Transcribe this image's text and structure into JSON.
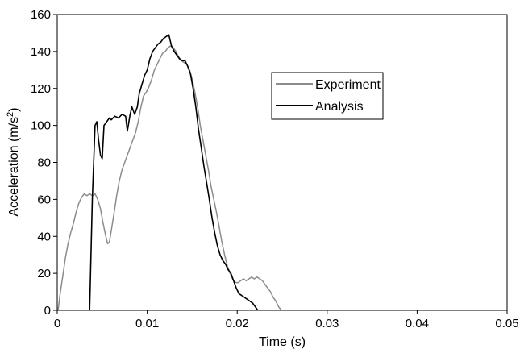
{
  "chart_data": {
    "type": "line",
    "title": "",
    "xlabel": "Time (s)",
    "ylabel_main": "Acceleration (m/s",
    "ylabel_sup": "2",
    "ylabel_close": ")",
    "xlim": [
      0,
      0.05
    ],
    "ylim": [
      0,
      160
    ],
    "xticks": [
      "0",
      "0.01",
      "0.02",
      "0.03",
      "0.04",
      "0.05"
    ],
    "yticks": [
      "0",
      "20",
      "40",
      "60",
      "80",
      "100",
      "120",
      "140",
      "160"
    ],
    "grid": false,
    "legend_position": "upper-center-right",
    "series": [
      {
        "name": "Experiment",
        "color": "#8c8c8c",
        "points": [
          [
            0.0001,
            0
          ],
          [
            0.0003,
            8
          ],
          [
            0.0006,
            18
          ],
          [
            0.0009,
            28
          ],
          [
            0.0012,
            36
          ],
          [
            0.0015,
            42
          ],
          [
            0.0018,
            47
          ],
          [
            0.0021,
            53
          ],
          [
            0.0024,
            58
          ],
          [
            0.0027,
            61
          ],
          [
            0.003,
            63
          ],
          [
            0.0033,
            62
          ],
          [
            0.0036,
            63
          ],
          [
            0.0039,
            62
          ],
          [
            0.0042,
            63
          ],
          [
            0.0045,
            60
          ],
          [
            0.0048,
            55
          ],
          [
            0.0051,
            47
          ],
          [
            0.0054,
            40
          ],
          [
            0.0056,
            36
          ],
          [
            0.0058,
            37
          ],
          [
            0.006,
            43
          ],
          [
            0.0063,
            52
          ],
          [
            0.0066,
            62
          ],
          [
            0.0069,
            70
          ],
          [
            0.0072,
            76
          ],
          [
            0.0075,
            80
          ],
          [
            0.0078,
            84
          ],
          [
            0.0081,
            88
          ],
          [
            0.0084,
            92
          ],
          [
            0.0087,
            96
          ],
          [
            0.009,
            102
          ],
          [
            0.0093,
            110
          ],
          [
            0.0096,
            116
          ],
          [
            0.0099,
            118
          ],
          [
            0.0102,
            121
          ],
          [
            0.0105,
            125
          ],
          [
            0.0108,
            130
          ],
          [
            0.0111,
            133
          ],
          [
            0.0114,
            136
          ],
          [
            0.0117,
            139
          ],
          [
            0.012,
            140
          ],
          [
            0.0123,
            142
          ],
          [
            0.0126,
            143
          ],
          [
            0.0129,
            142
          ],
          [
            0.0132,
            140
          ],
          [
            0.0135,
            137
          ],
          [
            0.0138,
            135
          ],
          [
            0.0141,
            134
          ],
          [
            0.0144,
            133
          ],
          [
            0.0147,
            130
          ],
          [
            0.015,
            125
          ],
          [
            0.0153,
            118
          ],
          [
            0.0156,
            110
          ],
          [
            0.0159,
            100
          ],
          [
            0.0162,
            92
          ],
          [
            0.0165,
            84
          ],
          [
            0.0168,
            76
          ],
          [
            0.0171,
            67
          ],
          [
            0.0174,
            60
          ],
          [
            0.0177,
            53
          ],
          [
            0.018,
            45
          ],
          [
            0.0183,
            37
          ],
          [
            0.0186,
            30
          ],
          [
            0.0189,
            24
          ],
          [
            0.0192,
            20
          ],
          [
            0.0195,
            17
          ],
          [
            0.0198,
            15
          ],
          [
            0.0201,
            15
          ],
          [
            0.0204,
            16
          ],
          [
            0.0207,
            17
          ],
          [
            0.021,
            16
          ],
          [
            0.0213,
            17
          ],
          [
            0.0216,
            18
          ],
          [
            0.0219,
            17
          ],
          [
            0.0222,
            18
          ],
          [
            0.0225,
            17
          ],
          [
            0.0228,
            16
          ],
          [
            0.0231,
            14
          ],
          [
            0.0234,
            12
          ],
          [
            0.0237,
            10
          ],
          [
            0.024,
            7
          ],
          [
            0.0243,
            5
          ],
          [
            0.0246,
            2
          ],
          [
            0.0249,
            0
          ]
        ]
      },
      {
        "name": "Analysis",
        "color": "#000000",
        "points": [
          [
            0.0036,
            0
          ],
          [
            0.0039,
            60
          ],
          [
            0.0042,
            100
          ],
          [
            0.0044,
            102
          ],
          [
            0.0046,
            92
          ],
          [
            0.0048,
            84
          ],
          [
            0.005,
            82
          ],
          [
            0.0052,
            100
          ],
          [
            0.0055,
            102
          ],
          [
            0.0058,
            104
          ],
          [
            0.006,
            103
          ],
          [
            0.0064,
            105
          ],
          [
            0.0068,
            104
          ],
          [
            0.0072,
            106
          ],
          [
            0.0076,
            105
          ],
          [
            0.0078,
            97
          ],
          [
            0.0081,
            106
          ],
          [
            0.0083,
            110
          ],
          [
            0.0086,
            106
          ],
          [
            0.0089,
            110
          ],
          [
            0.0091,
            117
          ],
          [
            0.0094,
            122
          ],
          [
            0.0097,
            127
          ],
          [
            0.01,
            130
          ],
          [
            0.0103,
            136
          ],
          [
            0.0106,
            140
          ],
          [
            0.0109,
            142
          ],
          [
            0.0112,
            144
          ],
          [
            0.0115,
            145
          ],
          [
            0.0118,
            147
          ],
          [
            0.0121,
            148
          ],
          [
            0.0124,
            149
          ],
          [
            0.0127,
            143
          ],
          [
            0.013,
            140
          ],
          [
            0.0133,
            138
          ],
          [
            0.0136,
            136
          ],
          [
            0.0139,
            135
          ],
          [
            0.0142,
            135
          ],
          [
            0.0145,
            132
          ],
          [
            0.0148,
            128
          ],
          [
            0.0151,
            120
          ],
          [
            0.0154,
            110
          ],
          [
            0.0157,
            98
          ],
          [
            0.016,
            88
          ],
          [
            0.0163,
            78
          ],
          [
            0.0166,
            69
          ],
          [
            0.0169,
            60
          ],
          [
            0.0172,
            50
          ],
          [
            0.0175,
            42
          ],
          [
            0.0178,
            35
          ],
          [
            0.0181,
            30
          ],
          [
            0.0184,
            27
          ],
          [
            0.0187,
            25
          ],
          [
            0.019,
            22
          ],
          [
            0.0193,
            20
          ],
          [
            0.0196,
            16
          ],
          [
            0.0199,
            12
          ],
          [
            0.0202,
            9
          ],
          [
            0.0205,
            8
          ],
          [
            0.0208,
            7
          ],
          [
            0.0211,
            6
          ],
          [
            0.0214,
            5
          ],
          [
            0.0217,
            4
          ],
          [
            0.022,
            2
          ],
          [
            0.0223,
            0
          ]
        ]
      }
    ]
  }
}
